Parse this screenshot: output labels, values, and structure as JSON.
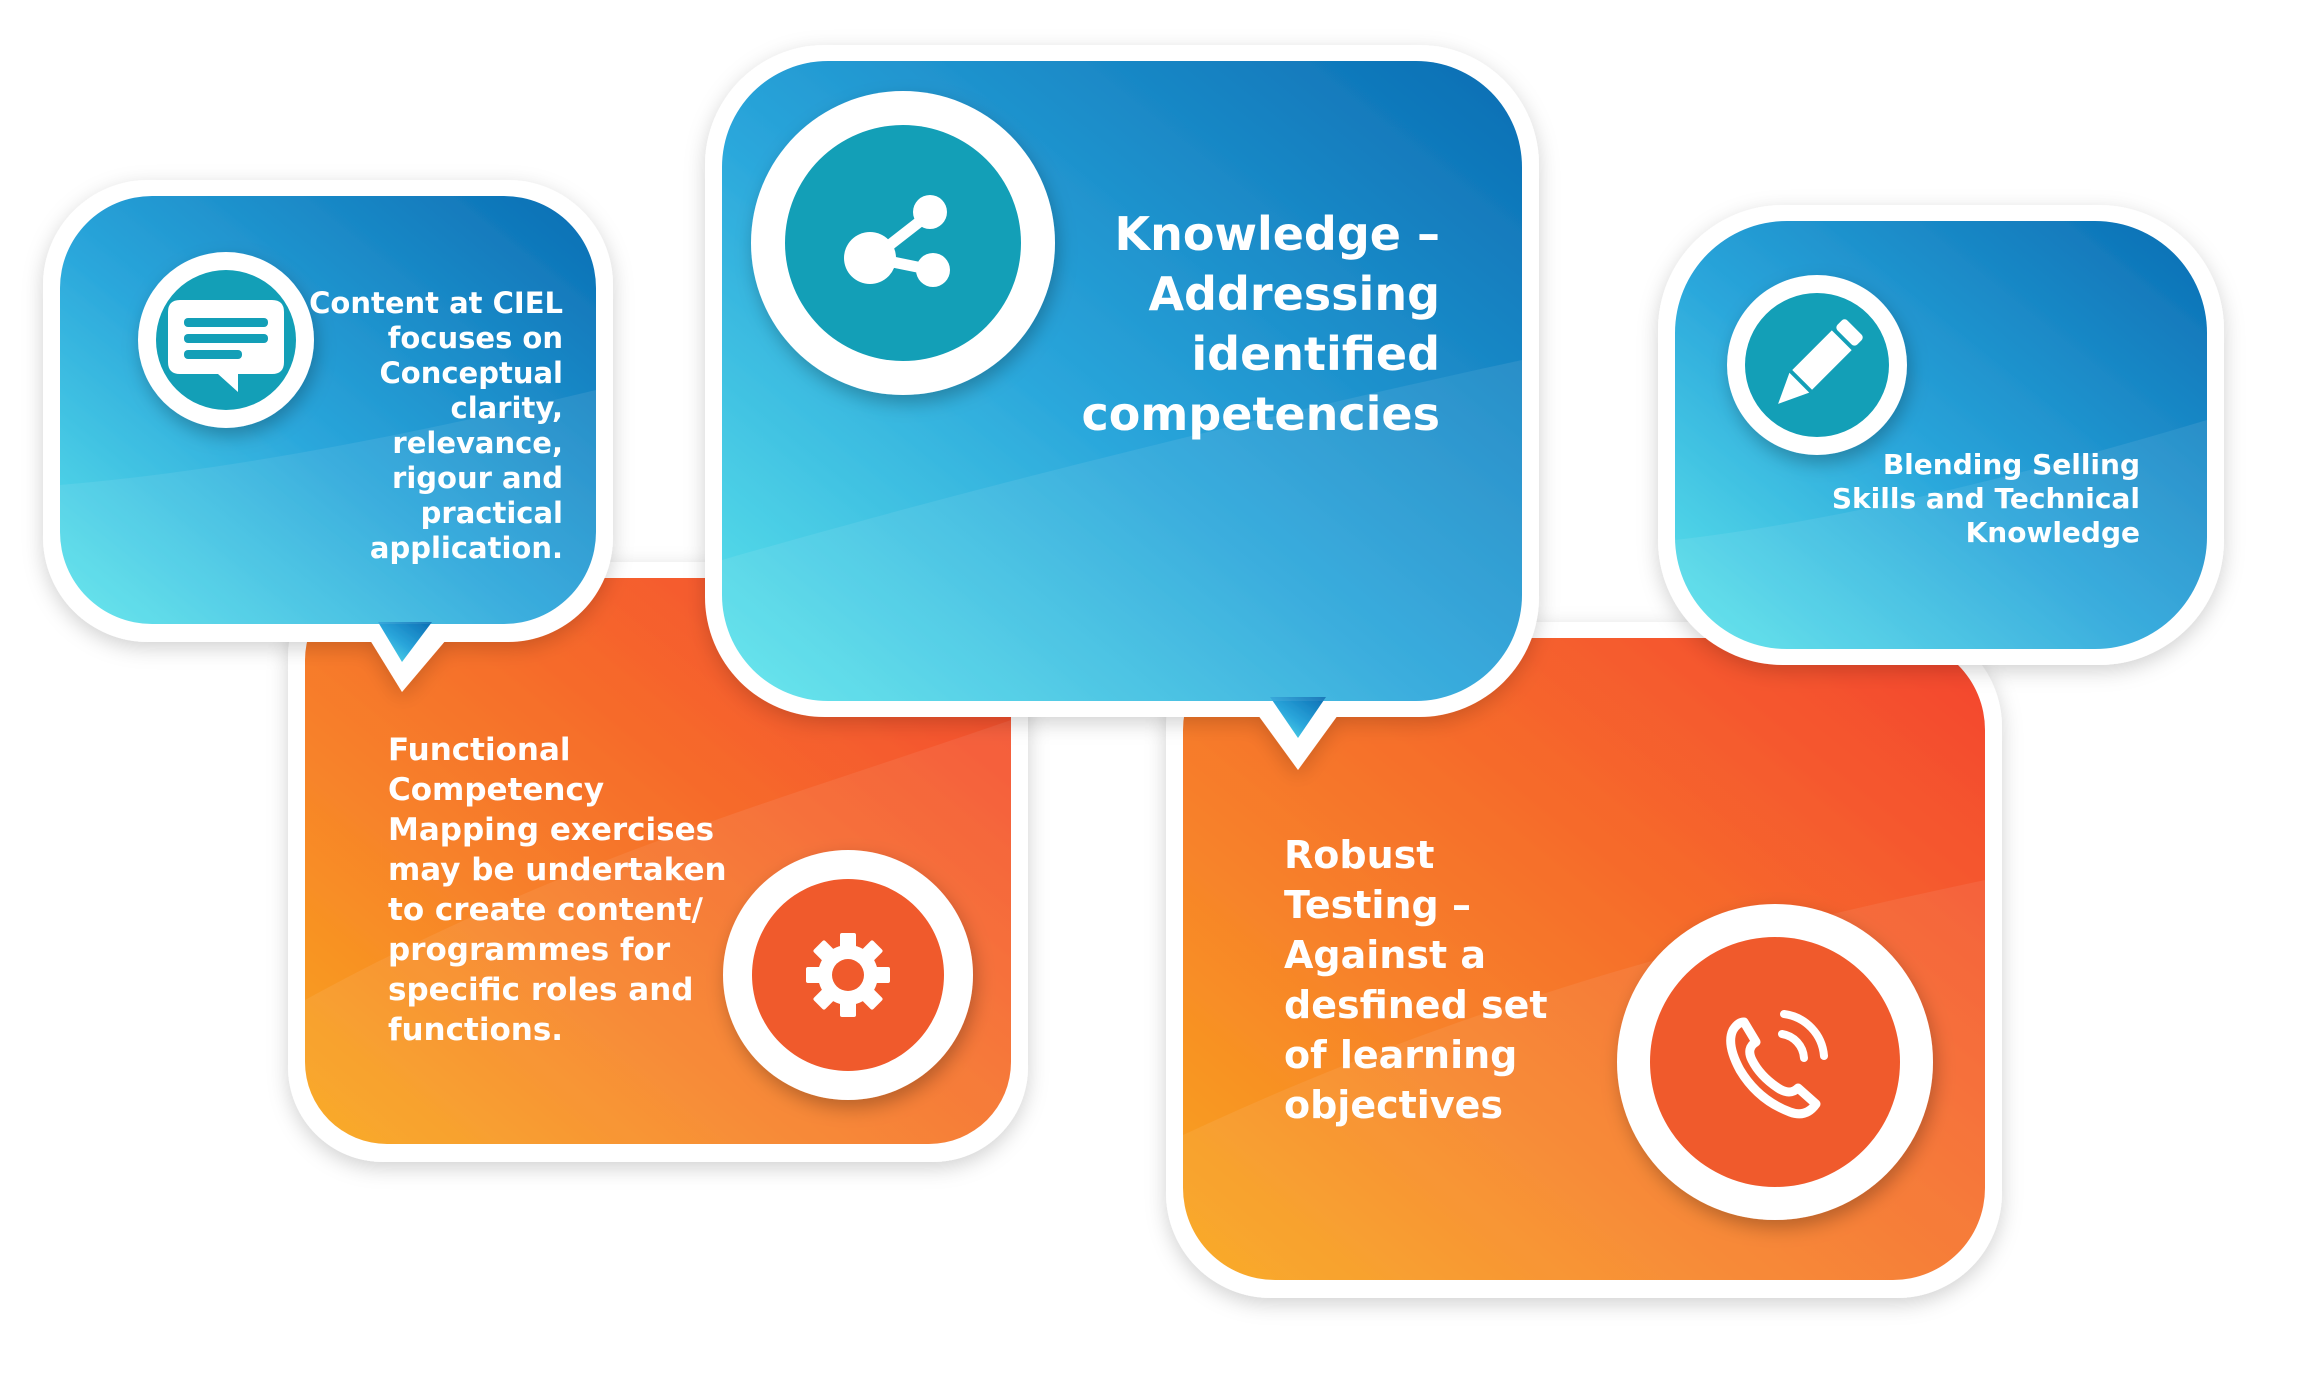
{
  "bubbles": {
    "content": {
      "text": "Content at CIEL focuses on Conceptual clarity, relevance, rigour and practical application.",
      "icon": "chat-message-icon",
      "color": "#1f8fd6"
    },
    "knowledge": {
      "text": "Knowledge – Addressing identified competencies",
      "icon": "share-nodes-icon",
      "color": "#1b7fd0"
    },
    "blending": {
      "text": "Blending Selling Skills and Technical Knowledge",
      "icon": "pencil-icon",
      "color": "#1f8fd6"
    },
    "functional": {
      "text": "Functional Competency Mapping exercises may be undertaken to create content/ programmes for specific roles and functions.",
      "icon": "gear-icon",
      "color": "#f45a2c"
    },
    "robust": {
      "text": "Robust Testing – Against a desfined set of learning objectives",
      "icon": "phone-call-icon",
      "color": "#f45a2c"
    }
  },
  "palette": {
    "blue_light": "#5be3ea",
    "blue_dark": "#0a6fb5",
    "orange_light": "#f9a81b",
    "orange_dark": "#f4462f",
    "teal_circle": "#139fb7",
    "orange_circle": "#f05a2c"
  }
}
